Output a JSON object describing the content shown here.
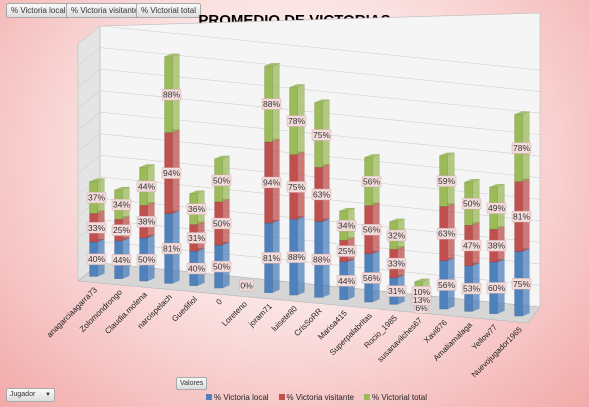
{
  "field_buttons": {
    "local": "% Victoria local",
    "visitante": "% Victoria visitante",
    "total": "% Victorial total"
  },
  "pivot": {
    "valores_label": "Valores",
    "jugador_label": "Jugador",
    "dropdown_icon": "chevron-down-icon"
  },
  "colors": {
    "local": "#4f81bd",
    "visitante": "#c0504d",
    "total": "#9bbb59",
    "label_bg": "#f2dcdb"
  },
  "chart_data": {
    "type": "bar",
    "stacked": true,
    "three_d": true,
    "title": "PROMEDIO DE VICTORIAS",
    "xlabel": "",
    "ylabel": "",
    "ylim": [
      0,
      275
    ],
    "grid": true,
    "legend_position": "bottom",
    "categories": [
      "anagarciaagarra73",
      "Zolomondrongo",
      "Claudia.molena",
      "narcispelach",
      "Guedifiol",
      "0",
      "Loreteno",
      "joram71",
      "luisete80",
      "CrisSoRR",
      "Marisa415",
      "Superpalabritas",
      "Rocio_1985",
      "susanavilches67",
      "Xavi876",
      "Amaliamalaga",
      "Yellow77",
      "Nuevojugador1965"
    ],
    "series": [
      {
        "name": "% Victoria local",
        "values": [
          40,
          44,
          50,
          81,
          40,
          50,
          0,
          81,
          88,
          88,
          44,
          56,
          31,
          6,
          56,
          53,
          60,
          75
        ]
      },
      {
        "name": "% Victoria visitante",
        "values": [
          33,
          25,
          38,
          94,
          31,
          50,
          0,
          94,
          75,
          63,
          25,
          56,
          33,
          13,
          63,
          47,
          38,
          81
        ]
      },
      {
        "name": "% Victorial total",
        "values": [
          37,
          34,
          44,
          88,
          36,
          50,
          0,
          88,
          78,
          75,
          34,
          56,
          32,
          10,
          59,
          50,
          49,
          78
        ]
      }
    ],
    "data_labels": {
      "local": [
        "40%",
        "44%",
        "50%",
        "81%",
        "40%",
        "50%",
        "0%",
        "81%",
        "88%",
        "88%",
        "44%",
        "56%",
        "31%",
        "6%",
        "56%",
        "53%",
        "60%",
        "75%"
      ],
      "visitante": [
        "33%",
        "25%",
        "38%",
        "94%",
        "31%",
        "50%",
        "",
        "94%",
        "75%",
        "63%",
        "25%",
        "56%",
        "33%",
        "13%",
        "63%",
        "47%",
        "38%",
        "81%"
      ],
      "total": [
        "37%",
        "34%",
        "44%",
        "88%",
        "36%",
        "50%",
        "",
        "88%",
        "78%",
        "75%",
        "34%",
        "56%",
        "32%",
        "10%",
        "59%",
        "50%",
        "49%",
        "78%"
      ]
    }
  }
}
